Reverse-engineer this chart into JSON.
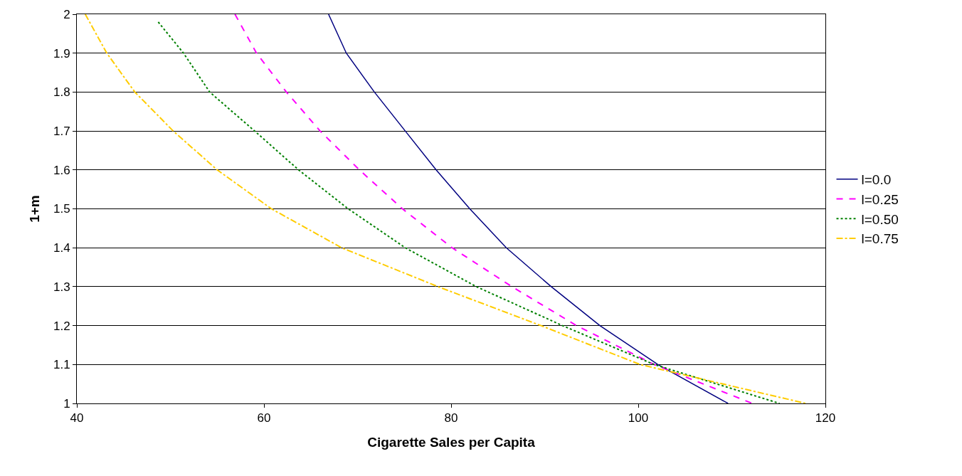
{
  "chart_data": {
    "type": "line",
    "xlabel": "Cigarette Sales per Capita",
    "ylabel": "1+m",
    "xlim": [
      40,
      120
    ],
    "xticks": [
      40,
      60,
      80,
      100,
      120
    ],
    "ylim": [
      1,
      2
    ],
    "yticks": [
      {
        "value": 1,
        "label": "1"
      },
      1.1,
      1.2,
      1.3,
      1.4,
      1.5,
      1.6,
      1.7,
      1.8,
      1.9,
      {
        "value": 2,
        "label": "2"
      }
    ],
    "grid": "y",
    "legend": "right",
    "marker": "none",
    "series": [
      {
        "name": "l=0.0",
        "color": "#000080",
        "line_style": "solid",
        "x": [
          66.9,
          68.8,
          71.8,
          75.1,
          78.4,
          82.0,
          85.9,
          90.7,
          95.9,
          102.1,
          109.6
        ],
        "values": [
          2,
          1.9,
          1.8,
          1.7,
          1.6,
          1.5,
          1.4,
          1.3,
          1.2,
          1.1,
          1
        ]
      },
      {
        "name": "l=0.25",
        "color": "#ff00ff",
        "line_style": "dashed",
        "x": [
          56.9,
          59.2,
          62.4,
          66.0,
          70.2,
          74.8,
          80.1,
          86.5,
          93.4,
          101.7,
          112.2
        ],
        "values": [
          2,
          1.9,
          1.8,
          1.7,
          1.6,
          1.5,
          1.4,
          1.3,
          1.2,
          1.1,
          1
        ]
      },
      {
        "name": "l=0.50",
        "color": "#008000",
        "line_style": "dotted",
        "x": [
          48.7,
          51.4,
          54.2,
          59.0,
          63.7,
          69.0,
          75.1,
          82.7,
          91.9,
          101.7,
          115.1
        ],
        "values": [
          1.98,
          1.9,
          1.8,
          1.7,
          1.6,
          1.5,
          1.4,
          1.3,
          1.2,
          1.1,
          1
        ]
      },
      {
        "name": "l=0.75",
        "color": "#ffcc00",
        "line_style": "dashdot",
        "x": [
          40.9,
          43.2,
          46.2,
          50.3,
          55.0,
          60.8,
          68.3,
          78.6,
          89.6,
          100.2,
          117.9
        ],
        "values": [
          2,
          1.9,
          1.8,
          1.7,
          1.6,
          1.5,
          1.4,
          1.3,
          1.2,
          1.1,
          1
        ]
      }
    ]
  }
}
